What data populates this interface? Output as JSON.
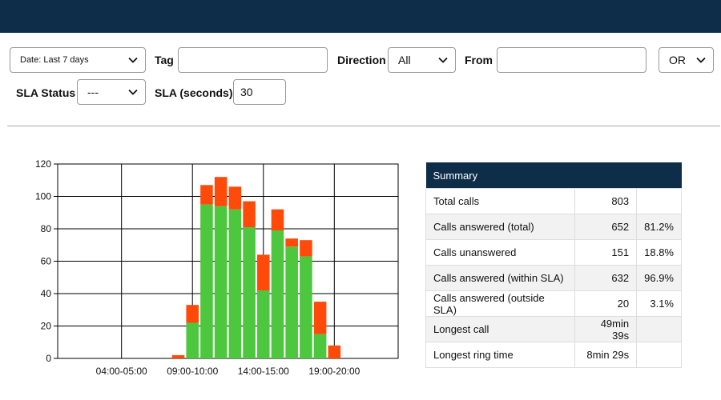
{
  "filters": {
    "date": {
      "label": "Date:",
      "value": "Last 7 days"
    },
    "tag": {
      "label": "Tag",
      "value": ""
    },
    "direction": {
      "label": "Direction",
      "value": "All"
    },
    "from": {
      "label": "From",
      "value": ""
    },
    "logic": {
      "value": "OR"
    },
    "sla_status": {
      "label": "SLA Status",
      "value": "---"
    },
    "sla_seconds": {
      "label": "SLA (seconds)",
      "value": "30"
    }
  },
  "colors": {
    "topbar": "#0e2d49",
    "within_sla": "#4dc73d",
    "outside_sla": "#ff4a0a"
  },
  "summary": {
    "header": "Summary",
    "rows": [
      {
        "label": "Total calls",
        "value": "803",
        "pct": ""
      },
      {
        "label": "Calls answered (total)",
        "value": "652",
        "pct": "81.2%"
      },
      {
        "label": "Calls unanswered",
        "value": "151",
        "pct": "18.8%"
      },
      {
        "label": "Calls answered (within SLA)",
        "value": "632",
        "pct": "96.9%"
      },
      {
        "label": "Calls answered (outside SLA)",
        "value": "20",
        "pct": "3.1%"
      },
      {
        "label": "Longest call",
        "value": "49min 39s",
        "pct": ""
      },
      {
        "label": "Longest ring time",
        "value": "8min 29s",
        "pct": ""
      }
    ]
  },
  "chart_data": {
    "type": "bar",
    "stacked": true,
    "categories": [
      "00:00-01:00",
      "01:00-02:00",
      "02:00-03:00",
      "03:00-04:00",
      "04:00-05:00",
      "05:00-06:00",
      "06:00-07:00",
      "07:00-08:00",
      "08:00-09:00",
      "09:00-10:00",
      "10:00-11:00",
      "11:00-12:00",
      "12:00-13:00",
      "13:00-14:00",
      "14:00-15:00",
      "15:00-16:00",
      "16:00-17:00",
      "17:00-18:00",
      "18:00-19:00",
      "19:00-20:00",
      "20:00-21:00",
      "21:00-22:00",
      "22:00-23:00",
      "23:00-24:00"
    ],
    "x_tick_labels": [
      "04:00-05:00",
      "09:00-10:00",
      "14:00-15:00",
      "19:00-20:00"
    ],
    "series": [
      {
        "values": [
          0,
          0,
          0,
          0,
          0,
          0,
          0,
          0,
          0,
          22,
          95,
          94,
          92,
          81,
          42,
          79,
          69,
          63,
          15,
          0,
          0,
          0,
          0,
          0
        ]
      },
      {
        "values": [
          0,
          0,
          0,
          0,
          0,
          0,
          0,
          0,
          2,
          11,
          12,
          18,
          14,
          16,
          22,
          13,
          5,
          10,
          20,
          8,
          0,
          0,
          0,
          0
        ]
      }
    ],
    "ylim": [
      0,
      120
    ],
    "y_ticks": [
      0,
      20,
      40,
      60,
      80,
      100,
      120
    ],
    "grid": true
  }
}
